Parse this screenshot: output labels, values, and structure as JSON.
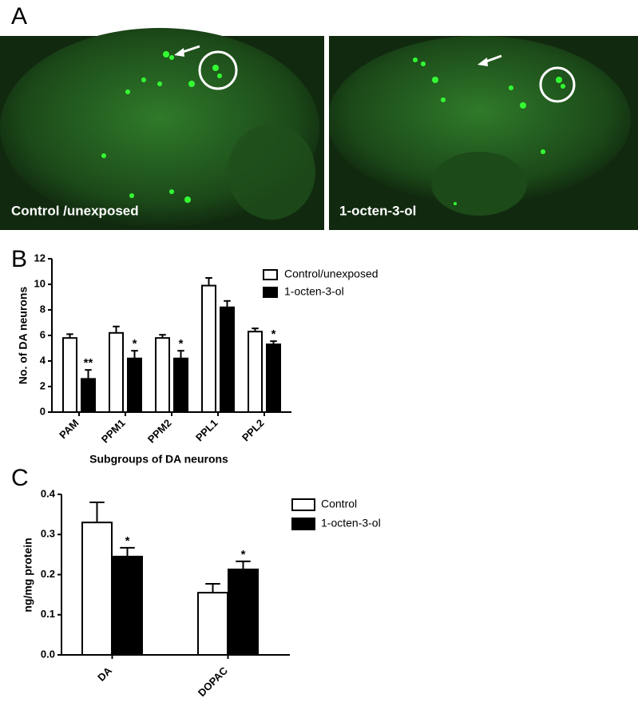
{
  "figure": {
    "panel_labels": [
      "A",
      "B",
      "C"
    ],
    "image_captions": [
      "Control /unexposed",
      "1-octen-3-ol"
    ]
  },
  "chart_data": [
    {
      "type": "bar",
      "categories": [
        "PAM",
        "PPM1",
        "PPM2",
        "PPL1",
        "PPL2"
      ],
      "y_label": "No. of DA neurons",
      "x_label": "Subgroups of DA neurons",
      "series": [
        {
          "name": "Control/unexposed",
          "color": "#ffffff",
          "values": [
            5.8,
            6.2,
            5.8,
            9.9,
            6.3
          ],
          "errors": [
            0.3,
            0.5,
            0.25,
            0.6,
            0.25
          ]
        },
        {
          "name": "1-octen-3-ol",
          "color": "#000000",
          "values": [
            2.6,
            4.2,
            4.2,
            8.2,
            5.3
          ],
          "errors": [
            0.7,
            0.6,
            0.6,
            0.5,
            0.25
          ],
          "annotations": [
            "**",
            "*",
            "*",
            null,
            "*"
          ]
        }
      ],
      "ylim": [
        0,
        12
      ],
      "yticks": [
        0,
        2,
        4,
        6,
        8,
        10,
        12
      ]
    },
    {
      "type": "bar",
      "categories": [
        "DA",
        "DOPAC"
      ],
      "y_label": "ng/mg protein",
      "series": [
        {
          "name": "Control",
          "color": "#ffffff",
          "values": [
            0.33,
            0.155
          ],
          "errors": [
            0.05,
            0.022
          ]
        },
        {
          "name": "1-octen-3-ol",
          "color": "#000000",
          "values": [
            0.245,
            0.213
          ],
          "errors": [
            0.022,
            0.02
          ],
          "annotations": [
            "*",
            "*"
          ]
        }
      ],
      "ylim": [
        0,
        0.4
      ],
      "yticks": [
        {
          "value": 0,
          "label": "0.0"
        },
        0.1,
        0.2,
        0.3,
        0.4
      ]
    }
  ]
}
